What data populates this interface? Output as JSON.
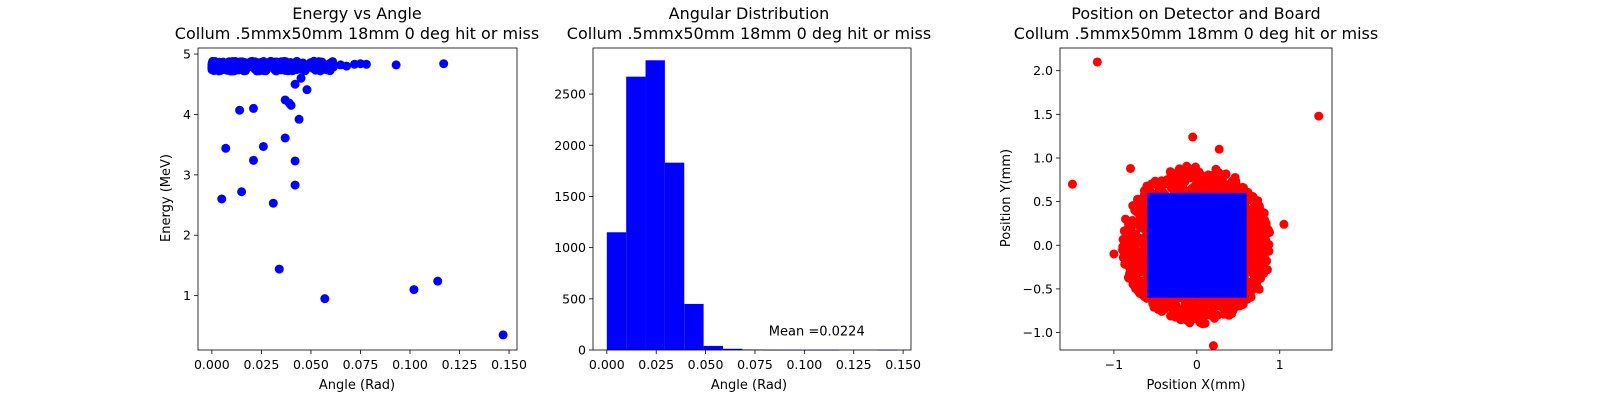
{
  "colors": {
    "hit": "#0000ff",
    "miss": "#ff0000",
    "axis": "#000000"
  },
  "chart_data": [
    {
      "id": "energy",
      "type": "scatter",
      "title": [
        "Energy vs Angle",
        "Collum .5mmx50mm 18mm 0 deg hit or miss"
      ],
      "xlabel": "Angle (Rad)",
      "ylabel": "Energy (MeV)",
      "xlim": [
        -0.007,
        0.154
      ],
      "ylim": [
        0.1,
        5.1
      ],
      "xticks": [
        0.0,
        0.025,
        0.05,
        0.075,
        0.1,
        0.125,
        0.15
      ],
      "xtick_labels": [
        "0.000",
        "0.025",
        "0.050",
        "0.075",
        "0.100",
        "0.125",
        "0.150"
      ],
      "yticks": [
        1,
        2,
        3,
        4,
        5
      ],
      "ytick_labels": [
        "1",
        "2",
        "3",
        "4",
        "5"
      ],
      "color": "#0000ff",
      "points": [
        [
          0.005,
          2.6
        ],
        [
          0.007,
          3.44
        ],
        [
          0.014,
          4.07
        ],
        [
          0.015,
          2.72
        ],
        [
          0.021,
          4.1
        ],
        [
          0.021,
          3.24
        ],
        [
          0.026,
          3.47
        ],
        [
          0.031,
          2.53
        ],
        [
          0.034,
          1.44
        ],
        [
          0.037,
          3.61
        ],
        [
          0.037,
          4.24
        ],
        [
          0.039,
          4.19
        ],
        [
          0.04,
          4.15
        ],
        [
          0.042,
          3.23
        ],
        [
          0.042,
          2.83
        ],
        [
          0.042,
          4.5
        ],
        [
          0.044,
          3.92
        ],
        [
          0.045,
          4.6
        ],
        [
          0.048,
          4.41
        ],
        [
          0.057,
          0.95
        ],
        [
          0.093,
          4.82
        ],
        [
          0.102,
          1.1
        ],
        [
          0.114,
          1.24
        ],
        [
          0.117,
          4.84
        ],
        [
          0.147,
          0.35
        ],
        [
          0.072,
          4.83
        ],
        [
          0.075,
          4.84
        ],
        [
          0.078,
          4.83
        ],
        [
          0.068,
          4.8
        ],
        [
          0.065,
          4.82
        ]
      ],
      "band": {
        "x": [
          0.0,
          0.062
        ],
        "y": [
          4.72,
          4.88
        ],
        "count": 320
      }
    },
    {
      "id": "angular",
      "type": "bar",
      "title": [
        "Angular Distribution",
        "Collum .5mmx50mm 18mm 0 deg hit or miss"
      ],
      "xlabel": "Angle (Rad)",
      "ylabel": "",
      "xlim": [
        -0.007,
        0.154
      ],
      "ylim": [
        0,
        2950
      ],
      "xticks": [
        0.0,
        0.025,
        0.05,
        0.075,
        0.1,
        0.125,
        0.15
      ],
      "xtick_labels": [
        "0.000",
        "0.025",
        "0.050",
        "0.075",
        "0.100",
        "0.125",
        "0.150"
      ],
      "yticks": [
        0,
        500,
        1000,
        1500,
        2000,
        2500
      ],
      "ytick_labels": [
        "0",
        "500",
        "1000",
        "1500",
        "2000",
        "2500"
      ],
      "color": "#0000ff",
      "bin_edges": [
        0.0,
        0.0098,
        0.0196,
        0.0294,
        0.0392,
        0.049,
        0.0588,
        0.0686,
        0.0784,
        0.0882,
        0.098,
        0.1078,
        0.1176,
        0.1274,
        0.1372,
        0.147
      ],
      "values": [
        1150,
        2670,
        2830,
        1830,
        450,
        40,
        12,
        5,
        2,
        1,
        1,
        1,
        0,
        0,
        1
      ],
      "annotation": {
        "text": "Mean =0.0224",
        "x": 0.082,
        "y": 140
      }
    },
    {
      "id": "position",
      "type": "scatter",
      "title": [
        "Position on Detector and Board",
        "Collum .5mmx50mm 18mm 0 deg hit or miss"
      ],
      "xlabel": "Position X(mm)",
      "ylabel": "Position Y(mm)",
      "xlim": [
        -1.65,
        1.63
      ],
      "ylim": [
        -1.2,
        2.26
      ],
      "xticks": [
        -1,
        0,
        1
      ],
      "xtick_labels": [
        "−1",
        "0",
        "1"
      ],
      "yticks": [
        -1.0,
        -0.5,
        0.0,
        0.5,
        1.0,
        1.5,
        2.0
      ],
      "ytick_labels": [
        "−1.0",
        "−0.5",
        "0.0",
        "0.5",
        "1.0",
        "1.5",
        "2.0"
      ],
      "series": [
        {
          "color": "#ff0000",
          "disk": {
            "radius": 0.9,
            "center": [
              0.0,
              0.0
            ]
          },
          "outliers": [
            [
              -1.2,
              2.1
            ],
            [
              -1.5,
              0.7
            ],
            [
              1.47,
              1.48
            ],
            [
              -0.05,
              1.24
            ],
            [
              0.27,
              1.1
            ],
            [
              -0.8,
              0.88
            ],
            [
              0.2,
              -1.15
            ],
            [
              1.05,
              0.24
            ],
            [
              -1.0,
              -0.1
            ]
          ]
        },
        {
          "color": "#0000ff",
          "square": {
            "x": [
              -0.6,
              0.6
            ],
            "y": [
              -0.6,
              0.6
            ]
          }
        }
      ]
    }
  ]
}
